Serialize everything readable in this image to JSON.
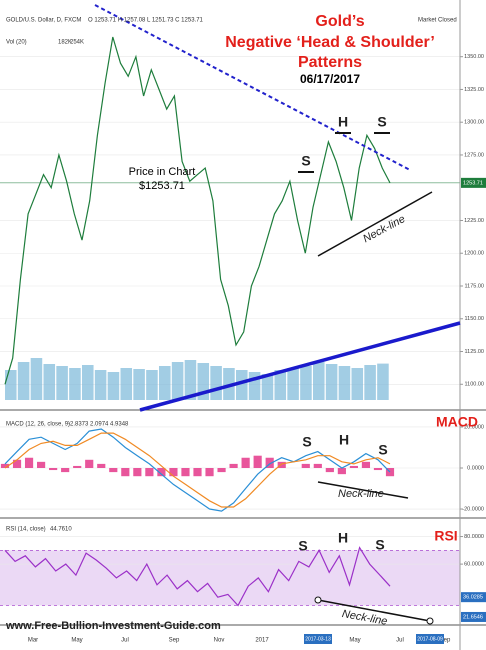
{
  "header": {
    "symbol": "GOLD/U.S. Dollar, D, FXCM",
    "ohlc": "O 1253.71 H 1257.08 L 1251.73 C 1253.71",
    "volume": "Vol (20)",
    "volume_values": [
      "182K",
      "254K"
    ],
    "status": "Market Closed"
  },
  "title": {
    "line1": "Gold’s",
    "line2": "Negative ‘Head & Shoulder’",
    "line3": "Patterns",
    "date": "06/17/2017"
  },
  "annotations": {
    "price_label": "Price in Chart",
    "price_value": "$1253.71",
    "price_marks": [
      "S",
      "H",
      "S"
    ],
    "price_neck": "Neck-line",
    "macd_marks": [
      "S",
      "H",
      "S"
    ],
    "macd_neck": "Neck-line",
    "rsi_marks": [
      "S",
      "H",
      "S"
    ],
    "rsi_neck": "Neck-line"
  },
  "chart_data": [
    {
      "type": "line",
      "name": "price",
      "series": [
        {
          "name": "Price",
          "color": "#1e7d3c",
          "values": [
            1100,
            1120,
            1180,
            1230,
            1245,
            1260,
            1250,
            1275,
            1255,
            1230,
            1210,
            1240,
            1290,
            1330,
            1365,
            1345,
            1335,
            1350,
            1320,
            1340,
            1325,
            1310,
            1320,
            1270,
            1255,
            1260,
            1265,
            1240,
            1180,
            1160,
            1130,
            1140,
            1175,
            1190,
            1210,
            1230,
            1240,
            1255,
            1225,
            1200,
            1235,
            1260,
            1285,
            1270,
            1250,
            1225,
            1265,
            1290,
            1280,
            1265,
            1253.71
          ]
        }
      ],
      "volume": {
        "color": "#7ab8d9",
        "values": [
          150,
          190,
          210,
          180,
          170,
          160,
          175,
          150,
          140,
          160,
          155,
          150,
          170,
          190,
          200,
          185,
          170,
          160,
          150,
          140,
          130,
          150,
          160,
          170,
          190,
          180,
          170,
          160,
          175,
          182
        ]
      },
      "vlim": [
        0,
        300
      ],
      "ylim": [
        1088,
        1378
      ],
      "yticks": [
        {
          "value": 1350,
          "label": "1350.00"
        },
        {
          "value": 1325,
          "label": "1325.00"
        },
        {
          "value": 1300,
          "label": "1300.00"
        },
        {
          "value": 1275,
          "label": "1275.00"
        },
        1253.71,
        {
          "value": 1225,
          "label": "1225.00"
        },
        {
          "value": 1200,
          "label": "1200.00"
        },
        {
          "value": 1175,
          "label": "1175.00"
        },
        {
          "value": 1150,
          "label": "1150.00"
        },
        {
          "value": 1125,
          "label": "1125.00"
        },
        {
          "value": 1100,
          "label": "1100.00"
        }
      ]
    },
    {
      "type": "line",
      "name": "MACD",
      "header": "MACD (12, 26, close, 9)",
      "header_values": "-2.8373 2.0974 4.9348",
      "series": [
        {
          "name": "MACD",
          "color": "#2a8fd6",
          "values": [
            2,
            8,
            14,
            15,
            12,
            9,
            12,
            18,
            19,
            15,
            10,
            6,
            2,
            -3,
            -8,
            -12,
            -16,
            -20,
            -21,
            -17,
            -10,
            -3,
            2,
            5,
            3,
            6,
            8,
            4,
            0,
            3,
            7,
            4,
            -2
          ]
        },
        {
          "name": "Signal",
          "color": "#f08a24",
          "values": [
            0,
            4,
            9,
            12,
            13,
            11,
            11,
            14,
            17,
            17,
            14,
            10,
            6,
            1,
            -4,
            -8,
            -12,
            -16,
            -19,
            -19,
            -15,
            -9,
            -3,
            2,
            3,
            4,
            6,
            6,
            3,
            2,
            4,
            5,
            2
          ]
        }
      ],
      "histogram": {
        "color": "#e8559b",
        "values": [
          2,
          4,
          5,
          3,
          -1,
          -2,
          1,
          4,
          2,
          -2,
          -4,
          -4,
          -4,
          -4,
          -4,
          -4,
          -4,
          -4,
          -2,
          2,
          5,
          6,
          5,
          3,
          0,
          2,
          2,
          -2,
          -3,
          1,
          3,
          -1,
          -4
        ]
      },
      "ylim": [
        -23.4,
        27.3
      ],
      "yticks": [
        {
          "value": 20,
          "label": "20.0000"
        },
        {
          "value": 0,
          "label": "0.0000"
        },
        {
          "value": -20,
          "label": "-20.0000"
        }
      ]
    },
    {
      "type": "line",
      "name": "RSI",
      "header": "RSI (14, close)",
      "header_values": "44.7610",
      "series": [
        {
          "name": "RSI",
          "color": "#9b30c8",
          "values": [
            70,
            62,
            66,
            58,
            64,
            55,
            60,
            52,
            68,
            63,
            57,
            50,
            55,
            48,
            60,
            45,
            52,
            42,
            48,
            40,
            46,
            36,
            38,
            30,
            44,
            50,
            40,
            56,
            48,
            62,
            58,
            70,
            54,
            66,
            45,
            72,
            60,
            52,
            44
          ]
        }
      ],
      "band": [
        30,
        70
      ],
      "ylim": [
        18,
        92
      ],
      "yticks": [
        {
          "value": 80,
          "label": "80.0000"
        },
        {
          "value": 60,
          "label": "60.0000"
        },
        36.0285,
        21.6546
      ]
    }
  ],
  "x_axis": {
    "labels": [
      "Mar",
      "May",
      "Jul",
      "Sep",
      "Nov",
      "2017",
      "Mar",
      "May",
      "Jul",
      "Sep"
    ],
    "dates": [
      "2017-03-13",
      "2017-08-09"
    ]
  },
  "footer": "www.Free-Bullion-Investment-Guide.com"
}
